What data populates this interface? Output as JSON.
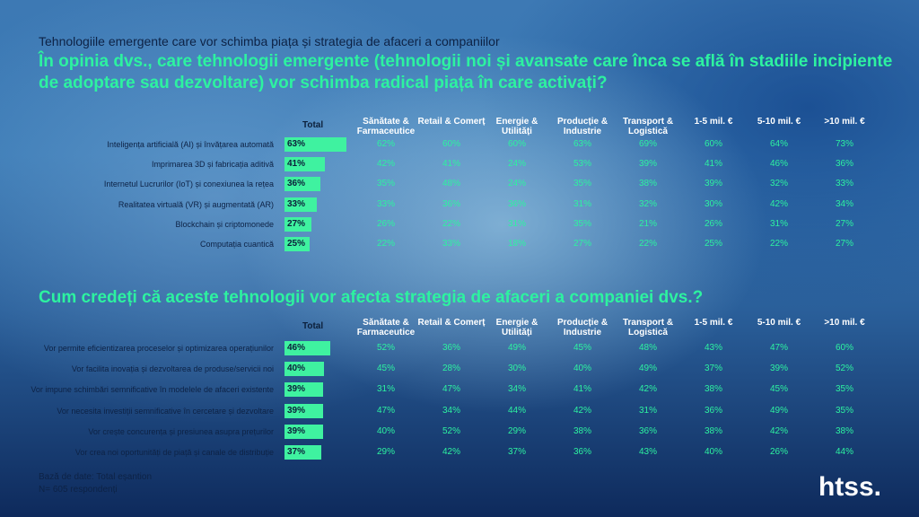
{
  "subtitle": "Tehnologiile emergente care vor schimba piața și strategia de afaceri a companiilor",
  "footer": {
    "line1": "Bază de date: Total eșantion",
    "line2": "N= 605 respondenți"
  },
  "logo": "htss.",
  "colors": {
    "accent": "#2df2a0",
    "bar": "#3ff2a0",
    "dark": "#0b1f3a",
    "header": "#ffffff"
  },
  "columns": [
    "Total",
    "Sănătate & Farmaceutice",
    "Retail & Comerț",
    "Energie & Utilități",
    "Producție & Industrie",
    "Transport & Logistică",
    "1-5 mil. €",
    "5-10 mil. €",
    ">10 mil. €"
  ],
  "chart_data": [
    {
      "type": "table",
      "title": "În opinia dvs., care tehnologii emergente (tehnologii noi și avansate care înca se află în stadiile incipiente de adoptare sau dezvoltare) vor schimba radical piața în care activați?",
      "rows": [
        {
          "label": "Inteligența artificială (AI) și învățarea automată",
          "total": 63,
          "values": [
            "62%",
            "60%",
            "60%",
            "63%",
            "69%",
            "60%",
            "64%",
            "73%"
          ]
        },
        {
          "label": "Imprimarea 3D și fabricația aditivă",
          "total": 41,
          "values": [
            "42%",
            "41%",
            "24%",
            "53%",
            "39%",
            "41%",
            "46%",
            "36%"
          ]
        },
        {
          "label": "Internetul Lucrurilor (IoT) și conexiunea la rețea",
          "total": 36,
          "values": [
            "35%",
            "48%",
            "24%",
            "35%",
            "38%",
            "39%",
            "32%",
            "33%"
          ]
        },
        {
          "label": "Realitatea virtuală (VR) și augmentată (AR)",
          "total": 33,
          "values": [
            "33%",
            "36%",
            "36%",
            "31%",
            "32%",
            "30%",
            "42%",
            "34%"
          ]
        },
        {
          "label": "Blockchain și criptomonede",
          "total": 27,
          "values": [
            "26%",
            "22%",
            "31%",
            "35%",
            "21%",
            "26%",
            "31%",
            "27%"
          ]
        },
        {
          "label": "Computația cuantică",
          "total": 25,
          "values": [
            "22%",
            "33%",
            "18%",
            "27%",
            "22%",
            "25%",
            "22%",
            "27%"
          ]
        }
      ]
    },
    {
      "type": "table",
      "title": "Cum credeți că aceste tehnologii vor afecta strategia de afaceri a companiei dvs.?",
      "rows": [
        {
          "label": "Vor permite eficientizarea proceselor și optimizarea operațiunilor",
          "total": 46,
          "values": [
            "52%",
            "36%",
            "49%",
            "45%",
            "48%",
            "43%",
            "47%",
            "60%"
          ]
        },
        {
          "label": "Vor facilita inovația și dezvoltarea de produse/servicii noi",
          "total": 40,
          "values": [
            "45%",
            "28%",
            "30%",
            "40%",
            "49%",
            "37%",
            "39%",
            "52%"
          ]
        },
        {
          "label": "Vor impune schimbări semnificative în modelele de afaceri existente",
          "total": 39,
          "values": [
            "31%",
            "47%",
            "34%",
            "41%",
            "42%",
            "38%",
            "45%",
            "35%"
          ]
        },
        {
          "label": "Vor necesita investiții semnificative în cercetare și dezvoltare",
          "total": 39,
          "values": [
            "47%",
            "34%",
            "44%",
            "42%",
            "31%",
            "36%",
            "49%",
            "35%"
          ]
        },
        {
          "label": "Vor crește concurența și presiunea asupra prețurilor",
          "total": 39,
          "values": [
            "40%",
            "52%",
            "29%",
            "38%",
            "36%",
            "38%",
            "42%",
            "38%"
          ]
        },
        {
          "label": "Vor crea noi oportunități de piață și canale de distribuție",
          "total": 37,
          "values": [
            "29%",
            "42%",
            "37%",
            "36%",
            "43%",
            "40%",
            "26%",
            "44%"
          ]
        }
      ]
    }
  ]
}
